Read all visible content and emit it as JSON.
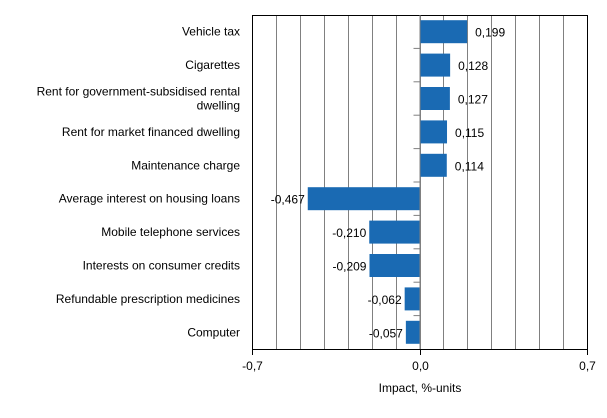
{
  "chart_data": {
    "type": "bar",
    "orientation": "horizontal",
    "categories": [
      "Vehicle tax",
      "Cigarettes",
      "Rent for government-subsidised rental dwelling",
      "Rent for market financed dwelling",
      "Maintenance charge",
      "Average interest on housing loans",
      "Mobile telephone services",
      "Interests on consumer credits",
      "Refundable prescription medicines",
      "Computer"
    ],
    "category_lines": [
      [
        "Vehicle tax"
      ],
      [
        "Cigarettes"
      ],
      [
        "Rent for government-subsidised rental",
        "dwelling"
      ],
      [
        "Rent for market financed dwelling"
      ],
      [
        "Maintenance charge"
      ],
      [
        "Average interest on housing loans"
      ],
      [
        "Mobile telephone services"
      ],
      [
        "Interests on consumer credits"
      ],
      [
        "Refundable prescription medicines"
      ],
      [
        "Computer"
      ]
    ],
    "values": [
      0.199,
      0.128,
      0.127,
      0.115,
      0.114,
      -0.467,
      -0.21,
      -0.209,
      -0.062,
      -0.057
    ],
    "data_labels": [
      "0,199",
      "0,128",
      "0,127",
      "0,115",
      "0,114",
      "-0,467",
      "-0,210",
      "-0,209",
      "-0,062",
      "-0,057"
    ],
    "xlabel": "Impact, %-units",
    "ylabel": "",
    "title": "",
    "xlim": [
      -0.7,
      0.7
    ],
    "xticks": [
      -0.7,
      0.0,
      0.7
    ],
    "xtick_labels": [
      "-0,7",
      "0,0",
      "0,7"
    ],
    "grid_step": 0.1,
    "grid": true,
    "bar_color": "#1a6ab3",
    "grid_color": "#808080"
  }
}
